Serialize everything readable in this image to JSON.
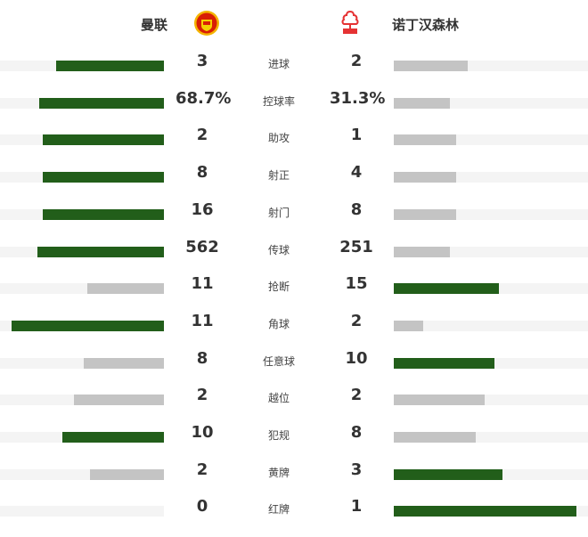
{
  "home": {
    "name": "曼联",
    "logo": "manchester-united-crest"
  },
  "away": {
    "name": "诺丁汉森林",
    "logo": "nottingham-forest-crest"
  },
  "colors": {
    "leader": "#225e1a",
    "trailer": "#c4c4c4",
    "track": "#f4f4f4"
  },
  "stats": [
    {
      "label": "进球",
      "home": "3",
      "away": "2",
      "home_fill": 0.66,
      "away_fill": 0.38
    },
    {
      "label": "控球率",
      "home": "68.7%",
      "away": "31.3%",
      "home_fill": 0.76,
      "away_fill": 0.29
    },
    {
      "label": "助攻",
      "home": "2",
      "away": "1",
      "home_fill": 0.74,
      "away_fill": 0.32
    },
    {
      "label": "射正",
      "home": "8",
      "away": "4",
      "home_fill": 0.74,
      "away_fill": 0.32
    },
    {
      "label": "射门",
      "home": "16",
      "away": "8",
      "home_fill": 0.74,
      "away_fill": 0.32
    },
    {
      "label": "传球",
      "home": "562",
      "away": "251",
      "home_fill": 0.77,
      "away_fill": 0.29
    },
    {
      "label": "抢断",
      "home": "11",
      "away": "15",
      "home_fill": 0.47,
      "away_fill": 0.54
    },
    {
      "label": "角球",
      "home": "11",
      "away": "2",
      "home_fill": 0.93,
      "away_fill": 0.15
    },
    {
      "label": "任意球",
      "home": "8",
      "away": "10",
      "home_fill": 0.49,
      "away_fill": 0.52
    },
    {
      "label": "越位",
      "home": "2",
      "away": "2",
      "home_fill": 0.55,
      "away_fill": 0.47
    },
    {
      "label": "犯规",
      "home": "10",
      "away": "8",
      "home_fill": 0.62,
      "away_fill": 0.42
    },
    {
      "label": "黄牌",
      "home": "2",
      "away": "3",
      "home_fill": 0.45,
      "away_fill": 0.56
    },
    {
      "label": "红牌",
      "home": "0",
      "away": "1",
      "home_fill": 0,
      "away_fill": 0.94
    }
  ]
}
